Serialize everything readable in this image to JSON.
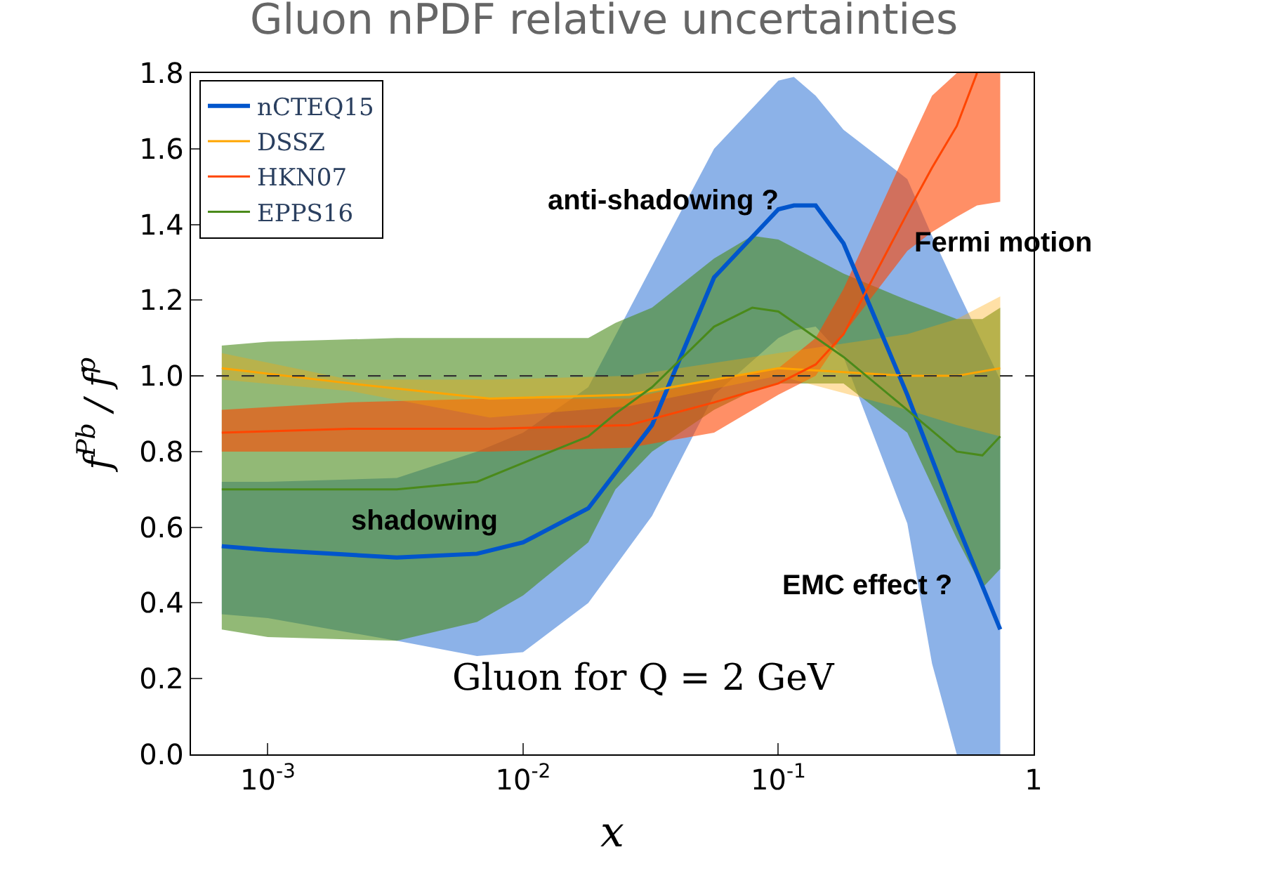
{
  "chart_data": {
    "type": "line",
    "title": "Gluon nPDF relative uncertainties",
    "xlabel": "x",
    "ylabel": "f$^{Pb}$ / f$^{p}$",
    "log": "x",
    "xlim": [
      0.0005,
      1
    ],
    "xticks": [
      {
        "value": 0.001,
        "label": "10$^{-3}$"
      },
      {
        "value": 0.01,
        "label": "10$^{-2}$"
      },
      {
        "value": 0.1,
        "label": "10$^{-1}$"
      },
      1
    ],
    "ylim": [
      0,
      1.8
    ],
    "yticks": [
      {
        "value": 0,
        "label": "0.0"
      },
      {
        "value": 0.2,
        "label": "0.2"
      },
      {
        "value": 0.4,
        "label": "0.4"
      },
      {
        "value": 0.6,
        "label": "0.6"
      },
      {
        "value": 0.8,
        "label": "0.8"
      },
      {
        "value": 1.0,
        "label": "1.0"
      },
      {
        "value": 1.2,
        "label": "1.2"
      },
      {
        "value": 1.4,
        "label": "1.4"
      },
      {
        "value": 1.6,
        "label": "1.6"
      },
      {
        "value": 1.8,
        "label": "1.8"
      }
    ],
    "legend": "top left",
    "marker": "none",
    "series": [
      {
        "name": "nCTEQ15",
        "color": "#0055cc",
        "x": [
          0.00066,
          0.001,
          0.0032,
          0.0066,
          0.01,
          0.018,
          0.032,
          0.056,
          0.1,
          0.115,
          0.14,
          0.18,
          0.32,
          0.4,
          0.5,
          0.74
        ],
        "values": [
          0.55,
          0.54,
          0.52,
          0.53,
          0.56,
          0.65,
          0.87,
          1.26,
          1.44,
          1.45,
          1.45,
          1.35,
          0.95,
          0.78,
          0.61,
          0.33
        ],
        "upper": [
          0.72,
          0.72,
          0.73,
          0.8,
          0.85,
          0.97,
          1.29,
          1.6,
          1.78,
          1.79,
          1.74,
          1.65,
          1.52,
          1.37,
          1.23,
          0.99
        ],
        "lower": [
          0.37,
          0.36,
          0.3,
          0.26,
          0.27,
          0.4,
          0.63,
          0.95,
          1.1,
          1.12,
          1.13,
          1.05,
          0.61,
          0.24,
          0.0,
          0.0
        ]
      },
      {
        "name": "DSSZ",
        "color": "#ffa500",
        "x": [
          0.00066,
          0.0021,
          0.0074,
          0.026,
          0.1,
          0.32,
          0.5,
          0.74
        ],
        "values": [
          1.02,
          0.98,
          0.94,
          0.95,
          1.02,
          1.0,
          1.0,
          1.02
        ],
        "upper": [
          1.06,
          0.99,
          0.99,
          1.0,
          1.06,
          1.11,
          1.15,
          1.21
        ],
        "lower": [
          0.99,
          0.96,
          0.89,
          0.92,
          1.0,
          0.91,
          0.87,
          0.84
        ]
      },
      {
        "name": "HKN07",
        "color": "#ff4500",
        "x": [
          0.00066,
          0.0021,
          0.0074,
          0.026,
          0.056,
          0.1,
          0.14,
          0.18,
          0.32,
          0.4,
          0.5,
          0.6,
          0.74
        ],
        "values": [
          0.85,
          0.86,
          0.86,
          0.87,
          0.93,
          0.98,
          1.03,
          1.11,
          1.43,
          1.55,
          1.66,
          1.8,
          null
        ],
        "upper": [
          0.91,
          0.93,
          0.94,
          0.94,
          0.99,
          1.02,
          1.1,
          1.23,
          1.6,
          1.74,
          1.8,
          1.8,
          1.8
        ],
        "lower": [
          0.8,
          0.8,
          0.8,
          0.81,
          0.85,
          0.95,
          1.0,
          1.11,
          1.33,
          1.38,
          1.42,
          1.45,
          1.46
        ]
      },
      {
        "name": "EPPS16",
        "color": "#4a8a1a",
        "x": [
          0.00066,
          0.001,
          0.0032,
          0.0066,
          0.01,
          0.018,
          0.023,
          0.032,
          0.056,
          0.079,
          0.1,
          0.18,
          0.32,
          0.5,
          0.63,
          0.74
        ],
        "values": [
          0.7,
          0.7,
          0.7,
          0.72,
          0.77,
          0.84,
          0.9,
          0.97,
          1.13,
          1.18,
          1.17,
          1.05,
          0.91,
          0.8,
          0.79,
          0.84
        ],
        "upper": [
          1.08,
          1.09,
          1.1,
          1.1,
          1.1,
          1.1,
          1.14,
          1.18,
          1.31,
          1.37,
          1.36,
          1.27,
          1.2,
          1.15,
          1.15,
          1.18
        ],
        "lower": [
          0.33,
          0.31,
          0.3,
          0.35,
          0.42,
          0.56,
          0.7,
          0.8,
          0.91,
          0.96,
          0.98,
          0.98,
          0.85,
          0.57,
          0.44,
          0.49
        ]
      }
    ],
    "ref_lines": [
      {
        "axis": "y",
        "value": 1.0,
        "color": "#333333",
        "line_style": "dashed"
      }
    ],
    "annotations": [
      "anti-shadowing ?",
      "Fermi motion",
      "shadowing",
      "EMC effect ?",
      "Gluon for Q = 2 GeV"
    ]
  }
}
